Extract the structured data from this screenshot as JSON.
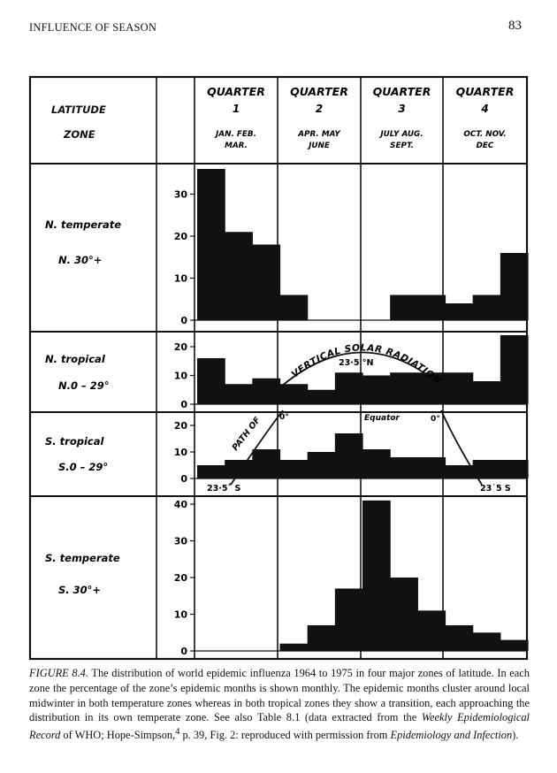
{
  "header": {
    "running_head": "INFLUENCE OF SEASON",
    "page_number": "83"
  },
  "table": {
    "latitude_label": "LATITUDE",
    "zone_label": "ZONE",
    "quarters": [
      {
        "title": "QUARTER",
        "number": "1",
        "months": [
          "JAN.  FEB.",
          "MAR."
        ]
      },
      {
        "title": "QUARTER",
        "number": "2",
        "months": [
          "APR. MAY",
          "JUNE"
        ]
      },
      {
        "title": "QUARTER",
        "number": "3",
        "months": [
          "JULY  AUG.",
          "SEPT."
        ]
      },
      {
        "title": "QUARTER",
        "number": "4",
        "months": [
          "OCT.  NOV.",
          "DEC"
        ]
      }
    ]
  },
  "chart_data": {
    "type": "bar",
    "categories": [
      "Jan",
      "Feb",
      "Mar",
      "Apr",
      "May",
      "Jun",
      "Jul",
      "Aug",
      "Sep",
      "Oct",
      "Nov",
      "Dec"
    ],
    "panels": [
      {
        "zone": "N. temperate",
        "range": "N. 30°+",
        "ylim": [
          0,
          38
        ],
        "ticks": [
          0,
          10,
          20,
          30
        ],
        "values": [
          36,
          21,
          18,
          6,
          0,
          0,
          0,
          6,
          6,
          4,
          6,
          16
        ]
      },
      {
        "zone": "N. tropical",
        "range": "N.0 – 29°",
        "ylim": [
          0,
          23
        ],
        "ticks": [
          0,
          10,
          20
        ],
        "values": [
          16,
          7,
          9,
          7,
          5,
          11,
          10,
          11,
          11,
          11,
          8,
          24
        ]
      },
      {
        "zone": "S. tropical",
        "range": "S.0 – 29°",
        "ylim": [
          0,
          25
        ],
        "ticks": [
          0,
          10,
          20
        ],
        "values": [
          5,
          7,
          11,
          7,
          10,
          17,
          11,
          8,
          8,
          5,
          7,
          7
        ]
      },
      {
        "zone": "S. temperate",
        "range": "S. 30°+",
        "ylim": [
          0,
          42
        ],
        "ticks": [
          0,
          10,
          20,
          30,
          40
        ],
        "values": [
          0,
          0,
          0,
          2,
          7,
          17,
          41,
          20,
          11,
          7,
          5,
          3
        ]
      }
    ],
    "annotations": {
      "north_arc_label": "VERTICAL SOLAR RADIATION",
      "north_lat": "23·5 °N",
      "south_arc_label": "PATH OF",
      "equator": "Equator",
      "zero_left": "0°",
      "zero_right": "0°",
      "south_lat_left": "23·5˚ S",
      "south_lat_right": "23˙5 S"
    }
  },
  "caption": {
    "label": "FIGURE 8.4.",
    "text1": " The distribution of world epidemic influenza 1964 to 1975 in four major zones of latitude. In each zone the percentage of the zone’s epidemic months is shown monthly. The epidemic months cluster around local midwinter in both temperature zones whereas in both tropical zones they show a transition, each approaching the distribution in its own temperate zone. See also Table 8.1 (data extracted from the ",
    "journal1": "Weekly Epidemiological Record",
    "text2": " of WHO; Hope-Simpson,",
    "sup": "4",
    "text3": " p. 39, Fig. 2: reproduced with permission from ",
    "journal2": "Epidemiology and Infection",
    "text4": ")."
  }
}
